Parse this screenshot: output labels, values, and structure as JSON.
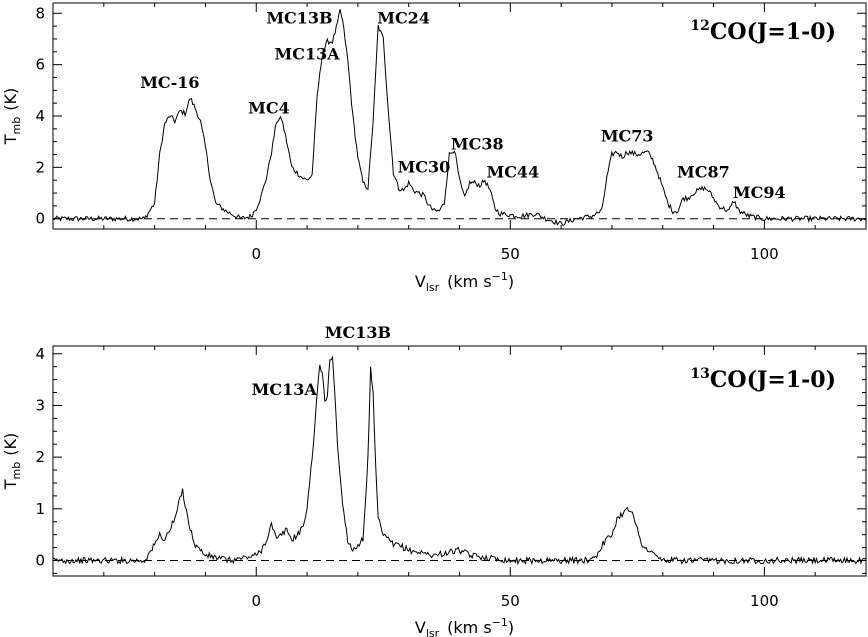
{
  "chart_data": [
    {
      "type": "line",
      "title": "CO(J=1-0)",
      "title_isotope": "12",
      "xlabel_main": "V",
      "xlabel_sub": "lsr",
      "xlabel_unit": "(km s",
      "xlabel_unit_exp": "−1",
      "xlabel_unit_close": ")",
      "ylabel_main": "T",
      "ylabel_sub": "mb",
      "ylabel_unit": "(K)",
      "xlim": [
        -40,
        120
      ],
      "ylim": [
        -0.4,
        8.4
      ],
      "xticks": [
        0,
        50,
        100
      ],
      "yticks": [
        0,
        2,
        4,
        6,
        8
      ],
      "baseline": 0,
      "noise": 0.1,
      "series": [
        {
          "values": [
            [
              -40,
              0.0
            ],
            [
              -22,
              0.0
            ],
            [
              -20,
              0.6
            ],
            [
              -19,
              2.5
            ],
            [
              -18,
              3.7
            ],
            [
              -17,
              4.0
            ],
            [
              -16,
              3.8
            ],
            [
              -15,
              4.2
            ],
            [
              -14,
              4.1
            ],
            [
              -13,
              4.7
            ],
            [
              -12,
              4.3
            ],
            [
              -11,
              3.8
            ],
            [
              -10,
              2.8
            ],
            [
              -9,
              1.5
            ],
            [
              -8,
              0.6
            ],
            [
              -6,
              0.3
            ],
            [
              -5,
              0.2
            ],
            [
              -3,
              0.0
            ],
            [
              -1,
              0.1
            ],
            [
              0,
              0.4
            ],
            [
              1,
              0.9
            ],
            [
              2,
              1.6
            ],
            [
              3,
              2.6
            ],
            [
              4,
              3.8
            ],
            [
              5,
              3.9
            ],
            [
              6,
              3.0
            ],
            [
              7,
              2.0
            ],
            [
              8,
              1.8
            ],
            [
              9,
              1.6
            ],
            [
              10,
              1.5
            ],
            [
              11,
              1.7
            ],
            [
              12,
              4.8
            ],
            [
              13,
              6.4
            ],
            [
              14,
              6.9
            ],
            [
              15,
              6.9
            ],
            [
              16,
              7.6
            ],
            [
              16.5,
              8.1
            ],
            [
              17,
              7.7
            ],
            [
              18,
              6.2
            ],
            [
              19,
              4.0
            ],
            [
              20,
              2.4
            ],
            [
              21,
              1.4
            ],
            [
              22,
              1.2
            ],
            [
              23,
              3.8
            ],
            [
              24,
              7.5
            ],
            [
              25,
              7.0
            ],
            [
              26,
              4.2
            ],
            [
              27,
              1.8
            ],
            [
              28,
              1.2
            ],
            [
              29,
              1.1
            ],
            [
              30,
              1.4
            ],
            [
              31,
              1.1
            ],
            [
              32,
              1.0
            ],
            [
              33,
              0.9
            ],
            [
              34,
              0.5
            ],
            [
              35,
              0.3
            ],
            [
              36,
              0.3
            ],
            [
              37,
              0.6
            ],
            [
              38,
              2.5
            ],
            [
              39,
              2.7
            ],
            [
              40,
              1.5
            ],
            [
              41,
              0.8
            ],
            [
              42,
              1.4
            ],
            [
              43,
              1.4
            ],
            [
              44,
              1.3
            ],
            [
              45,
              1.5
            ],
            [
              46,
              1.1
            ],
            [
              47,
              0.4
            ],
            [
              48,
              0.2
            ],
            [
              52,
              0.1
            ],
            [
              55,
              0.2
            ],
            [
              57,
              0.0
            ],
            [
              60,
              -0.2
            ],
            [
              63,
              0.0
            ],
            [
              66,
              0.1
            ],
            [
              68,
              0.3
            ],
            [
              69,
              1.6
            ],
            [
              70,
              2.5
            ],
            [
              71,
              2.6
            ],
            [
              72,
              2.4
            ],
            [
              73,
              2.6
            ],
            [
              75,
              2.5
            ],
            [
              77,
              2.6
            ],
            [
              78,
              2.3
            ],
            [
              79,
              1.8
            ],
            [
              80,
              1.2
            ],
            [
              81,
              0.6
            ],
            [
              82,
              0.3
            ],
            [
              83,
              0.3
            ],
            [
              84,
              0.8
            ],
            [
              85,
              0.8
            ],
            [
              86,
              1.0
            ],
            [
              87,
              1.1
            ],
            [
              88,
              1.2
            ],
            [
              89,
              1.1
            ],
            [
              90,
              0.8
            ],
            [
              91,
              0.5
            ],
            [
              92,
              0.4
            ],
            [
              93,
              0.3
            ],
            [
              94,
              0.7
            ],
            [
              95,
              0.3
            ],
            [
              97,
              0.1
            ],
            [
              100,
              0.0
            ],
            [
              120,
              0.0
            ]
          ]
        }
      ],
      "annotations": [
        {
          "text": "MC-16",
          "x": -17,
          "y": 5.1
        },
        {
          "text": "MC4",
          "x": 2.5,
          "y": 4.1
        },
        {
          "text": "MC13A",
          "x": 10,
          "y": 6.2
        },
        {
          "text": "MC13B",
          "x": 8.5,
          "y": 7.6
        },
        {
          "text": "MC24",
          "x": 29,
          "y": 7.6
        },
        {
          "text": "MC30",
          "x": 33,
          "y": 1.8
        },
        {
          "text": "MC38",
          "x": 43.5,
          "y": 2.7
        },
        {
          "text": "MC44",
          "x": 50.5,
          "y": 1.6
        },
        {
          "text": "MC73",
          "x": 73,
          "y": 3.0
        },
        {
          "text": "MC87",
          "x": 88,
          "y": 1.6
        },
        {
          "text": "MC94",
          "x": 99,
          "y": 0.8
        }
      ]
    },
    {
      "type": "line",
      "title": "CO(J=1-0)",
      "title_isotope": "13",
      "xlabel_main": "V",
      "xlabel_sub": "lsr",
      "xlabel_unit": "(km s",
      "xlabel_unit_exp": "−1",
      "xlabel_unit_close": ")",
      "ylabel_main": "T",
      "ylabel_sub": "mb",
      "ylabel_unit": "(K)",
      "xlim": [
        -40,
        120
      ],
      "ylim": [
        -0.3,
        4.15
      ],
      "xticks": [
        0,
        50,
        100
      ],
      "yticks": [
        0,
        1,
        2,
        3,
        4
      ],
      "baseline": 0,
      "noise": 0.06,
      "series": [
        {
          "values": [
            [
              -40,
              0.0
            ],
            [
              -22,
              0.0
            ],
            [
              -20,
              0.3
            ],
            [
              -19,
              0.5
            ],
            [
              -18,
              0.4
            ],
            [
              -17,
              0.6
            ],
            [
              -16,
              0.8
            ],
            [
              -15,
              1.2
            ],
            [
              -14.5,
              1.35
            ],
            [
              -14,
              1.1
            ],
            [
              -13,
              0.6
            ],
            [
              -12,
              0.3
            ],
            [
              -10,
              0.1
            ],
            [
              -5,
              0.0
            ],
            [
              0,
              0.1
            ],
            [
              1,
              0.2
            ],
            [
              2,
              0.4
            ],
            [
              3,
              0.7
            ],
            [
              4,
              0.4
            ],
            [
              5,
              0.5
            ],
            [
              6,
              0.6
            ],
            [
              7,
              0.4
            ],
            [
              8,
              0.5
            ],
            [
              9,
              0.6
            ],
            [
              10,
              1.0
            ],
            [
              11,
              2.0
            ],
            [
              12,
              3.2
            ],
            [
              12.5,
              3.8
            ],
            [
              13,
              3.6
            ],
            [
              13.5,
              3.1
            ],
            [
              14,
              3.2
            ],
            [
              14.5,
              3.9
            ],
            [
              15,
              3.95
            ],
            [
              15.5,
              3.2
            ],
            [
              16,
              2.2
            ],
            [
              17,
              1.1
            ],
            [
              18,
              0.4
            ],
            [
              19,
              0.2
            ],
            [
              20,
              0.3
            ],
            [
              21,
              0.4
            ],
            [
              22,
              2.0
            ],
            [
              22.5,
              3.7
            ],
            [
              23,
              3.2
            ],
            [
              23.5,
              1.8
            ],
            [
              24,
              0.8
            ],
            [
              25,
              0.5
            ],
            [
              26,
              0.4
            ],
            [
              27,
              0.3
            ],
            [
              28,
              0.3
            ],
            [
              30,
              0.2
            ],
            [
              35,
              0.1
            ],
            [
              40,
              0.2
            ],
            [
              42,
              0.1
            ],
            [
              50,
              0.0
            ],
            [
              60,
              0.0
            ],
            [
              65,
              0.0
            ],
            [
              67,
              0.1
            ],
            [
              68,
              0.3
            ],
            [
              70,
              0.5
            ],
            [
              71,
              0.8
            ],
            [
              72,
              0.9
            ],
            [
              73,
              1.05
            ],
            [
              74,
              0.9
            ],
            [
              75,
              0.6
            ],
            [
              76,
              0.3
            ],
            [
              77,
              0.2
            ],
            [
              80,
              0.0
            ],
            [
              120,
              0.0
            ]
          ]
        }
      ],
      "annotations": [
        {
          "text": "MC13A",
          "x": 5.5,
          "y": 3.2
        },
        {
          "text": "MC13B",
          "x": 20,
          "y": 4.3
        }
      ]
    }
  ]
}
